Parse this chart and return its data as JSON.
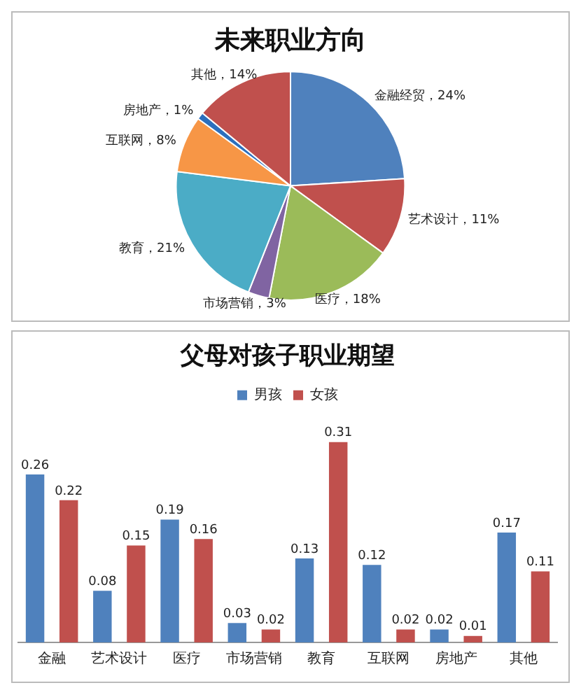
{
  "chart_data": [
    {
      "type": "pie",
      "title": "未来职业方向",
      "categories": [
        "金融经贸",
        "艺术设计",
        "医疗",
        "市场营销",
        "教育",
        "互联网",
        "房地产",
        "其他"
      ],
      "values": [
        24,
        11,
        18,
        3,
        21,
        8,
        1,
        14
      ],
      "colors": [
        "#4f81bd",
        "#c0504d",
        "#9bbb59",
        "#8064a2",
        "#4bacc6",
        "#f79646",
        "#2c6fbd",
        "#c0504d"
      ],
      "value_labels": [
        "，24%",
        "，11%",
        "，18%",
        "，3%",
        "，21%",
        "，8%",
        "，1%",
        "，14%"
      ],
      "legend": false
    },
    {
      "type": "bar",
      "title": "父母对孩子职业期望",
      "categories": [
        "金融",
        "艺术设计",
        "医疗",
        "市场营销",
        "教育",
        "互联网",
        "房地产",
        "其他"
      ],
      "series": [
        {
          "name": "男孩",
          "color": "#4f81bd",
          "values": [
            0.26,
            0.08,
            0.19,
            0.03,
            0.13,
            0.12,
            0.02,
            0.17
          ]
        },
        {
          "name": "女孩",
          "color": "#c0504d",
          "values": [
            0.22,
            0.15,
            0.16,
            0.02,
            0.31,
            0.02,
            0.01,
            0.11
          ]
        }
      ],
      "data_labels": true,
      "legend": "top",
      "grid": false,
      "tick_labels": "x"
    }
  ]
}
